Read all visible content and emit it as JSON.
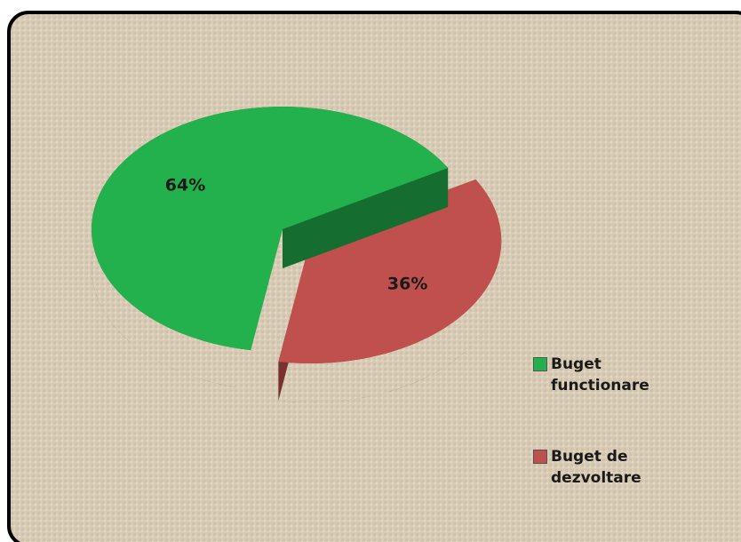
{
  "chart_data": {
    "type": "pie",
    "categories": [
      "Buget functionare",
      "Buget de dezvoltare"
    ],
    "values": [
      64,
      36
    ],
    "value_labels": [
      "64%",
      "36%"
    ],
    "colors": [
      "#22b14c",
      "#c0504d"
    ]
  }
}
